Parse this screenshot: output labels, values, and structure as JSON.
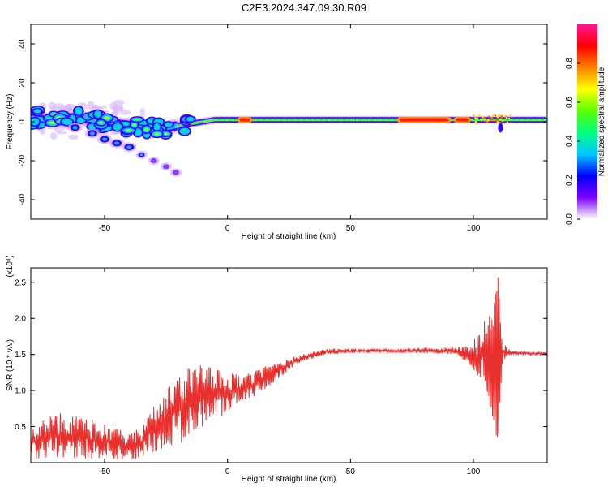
{
  "figure": {
    "title": "C2E3.2024.347.09.30.R09"
  },
  "chart_data": [
    {
      "type": "heatmap",
      "xlabel": "Height of straight line (km)",
      "ylabel": "Frequency (Hz)",
      "xlim": [
        -80,
        130
      ],
      "ylim": [
        -50,
        50
      ],
      "x_ticks": [
        -50,
        0,
        50,
        100
      ],
      "y_ticks": [
        -40,
        -20,
        0,
        20,
        40
      ],
      "ridge": [
        [
          -80,
          2
        ],
        [
          -75,
          1
        ],
        [
          -70,
          1
        ],
        [
          -65,
          2
        ],
        [
          -60,
          2
        ],
        [
          -55,
          1
        ],
        [
          -50,
          0
        ],
        [
          -45,
          -1
        ],
        [
          -40,
          -2
        ],
        [
          -35,
          -2
        ],
        [
          -30,
          -3
        ],
        [
          -25,
          -3
        ],
        [
          -20,
          -2
        ],
        [
          -15,
          -1
        ],
        [
          -10,
          0
        ],
        [
          -5,
          1
        ],
        [
          0,
          1
        ],
        [
          5,
          1
        ],
        [
          10,
          1
        ],
        [
          20,
          1
        ],
        [
          30,
          1
        ],
        [
          40,
          1
        ],
        [
          50,
          1
        ],
        [
          60,
          1
        ],
        [
          70,
          1
        ],
        [
          80,
          1
        ],
        [
          90,
          1
        ],
        [
          100,
          1
        ],
        [
          110,
          1
        ],
        [
          120,
          1
        ],
        [
          130,
          1
        ]
      ],
      "high_amplitude_segments": [
        {
          "x": [
            5,
            9
          ],
          "y": 1
        },
        {
          "x": [
            70,
            90
          ],
          "y": 1
        },
        {
          "x": [
            93,
            98
          ],
          "y": 1
        }
      ],
      "dip_near_x": 111,
      "branch": [
        [
          -62,
          -3
        ],
        [
          -55,
          -6
        ],
        [
          -50,
          -9
        ],
        [
          -45,
          -11
        ],
        [
          -40,
          -13
        ],
        [
          -35,
          -17
        ],
        [
          -30,
          -20
        ],
        [
          -25,
          -23
        ],
        [
          -21,
          -26
        ]
      ],
      "colorbar": {
        "label": "Normalized spectral amplitude",
        "range": [
          0,
          1
        ],
        "ticks": [
          "0.0",
          "0.2",
          "0.4",
          "0.6",
          "0.8"
        ],
        "colors": [
          "#ffffff",
          "#7b00ff",
          "#0000ff",
          "#00c8ff",
          "#00ff80",
          "#5aff00",
          "#ffff00",
          "#ff8000",
          "#ff0000",
          "#ff1493"
        ]
      }
    },
    {
      "type": "line",
      "xlabel": "Height of straight line (km)",
      "ylabel": "SNR (10 * v/v)",
      "y_multiplier": "(x10⁴)",
      "xlim": [
        -80,
        130
      ],
      "ylim": [
        0,
        2.7
      ],
      "x_ticks": [
        -50,
        0,
        50,
        100
      ],
      "y_ticks": [
        "0.5",
        "1.0",
        "1.5",
        "2.0",
        "2.5"
      ],
      "color": "#e8312e",
      "envelope": [
        {
          "x": -80,
          "lo": 0.05,
          "hi": 0.5
        },
        {
          "x": -70,
          "lo": 0.05,
          "hi": 0.7
        },
        {
          "x": -60,
          "lo": 0.05,
          "hi": 0.65
        },
        {
          "x": -50,
          "lo": 0.05,
          "hi": 0.55
        },
        {
          "x": -40,
          "lo": 0.03,
          "hi": 0.4
        },
        {
          "x": -35,
          "lo": 0.05,
          "hi": 0.5
        },
        {
          "x": -30,
          "lo": 0.15,
          "hi": 0.8
        },
        {
          "x": -25,
          "lo": 0.2,
          "hi": 1.0
        },
        {
          "x": -20,
          "lo": 0.25,
          "hi": 1.25
        },
        {
          "x": -15,
          "lo": 0.35,
          "hi": 1.4
        },
        {
          "x": -10,
          "lo": 0.45,
          "hi": 1.35
        },
        {
          "x": -5,
          "lo": 0.55,
          "hi": 1.3
        },
        {
          "x": 0,
          "lo": 0.7,
          "hi": 1.3
        },
        {
          "x": 5,
          "lo": 0.85,
          "hi": 1.2
        },
        {
          "x": 10,
          "lo": 0.9,
          "hi": 1.25
        },
        {
          "x": 15,
          "lo": 1.0,
          "hi": 1.35
        },
        {
          "x": 20,
          "lo": 1.15,
          "hi": 1.42
        },
        {
          "x": 25,
          "lo": 1.28,
          "hi": 1.45
        },
        {
          "x": 30,
          "lo": 1.4,
          "hi": 1.5
        },
        {
          "x": 40,
          "lo": 1.5,
          "hi": 1.58
        },
        {
          "x": 50,
          "lo": 1.52,
          "hi": 1.58
        },
        {
          "x": 60,
          "lo": 1.52,
          "hi": 1.58
        },
        {
          "x": 70,
          "lo": 1.52,
          "hi": 1.58
        },
        {
          "x": 80,
          "lo": 1.52,
          "hi": 1.6
        },
        {
          "x": 90,
          "lo": 1.5,
          "hi": 1.6
        },
        {
          "x": 95,
          "lo": 1.45,
          "hi": 1.62
        },
        {
          "x": 100,
          "lo": 1.3,
          "hi": 1.7
        },
        {
          "x": 105,
          "lo": 0.9,
          "hi": 2.0
        },
        {
          "x": 108,
          "lo": 0.6,
          "hi": 2.1
        },
        {
          "x": 110,
          "lo": 0.2,
          "hi": 2.65
        },
        {
          "x": 112,
          "lo": 1.4,
          "hi": 1.7
        },
        {
          "x": 115,
          "lo": 1.5,
          "hi": 1.55
        },
        {
          "x": 120,
          "lo": 1.5,
          "hi": 1.54
        },
        {
          "x": 130,
          "lo": 1.48,
          "hi": 1.53
        }
      ]
    }
  ]
}
